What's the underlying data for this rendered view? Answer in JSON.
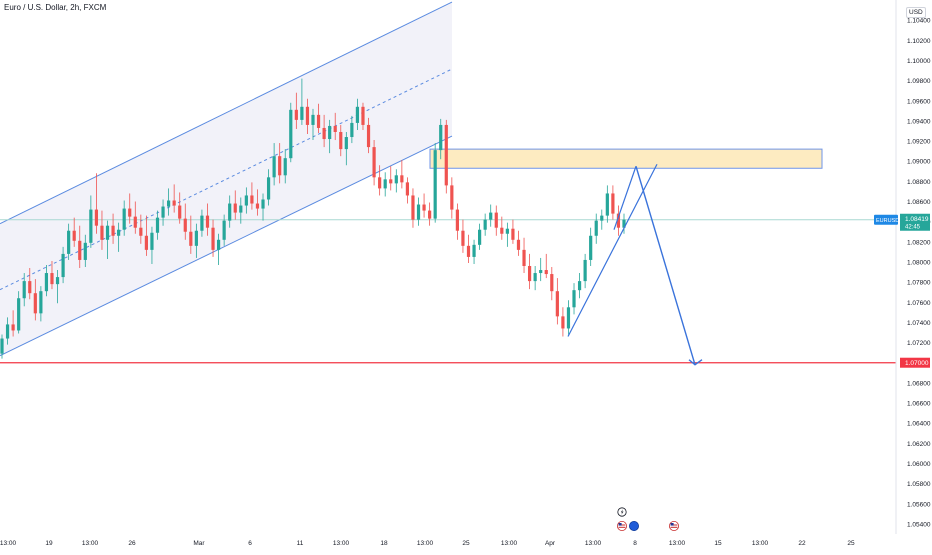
{
  "header": {
    "title": "Euro / U.S. Dollar, 2h, FXCM",
    "currency_label": "USD"
  },
  "colors": {
    "up_candle": "#26a69a",
    "down_candle": "#ef5350",
    "channel_line": "#5b8be0",
    "channel_fill": "#ececf6",
    "zone_fill": "#fde8b6",
    "zone_border": "#6f95e8",
    "support_line": "#f23645",
    "projection_line": "#3a73db",
    "current_price_line": "#a8d8d2",
    "axis_text": "#131722"
  },
  "chart_data": {
    "type": "candlestick",
    "symbol": "EURUSD",
    "timeframe": "2h",
    "ylim": [
      1.053,
      1.106
    ],
    "y_ticks": [
      "1.10400",
      "1.10200",
      "1.10000",
      "1.09800",
      "1.09600",
      "1.09400",
      "1.09200",
      "1.09000",
      "1.08800",
      "1.08600",
      "1.08400",
      "1.08200",
      "1.08000",
      "1.07800",
      "1.07600",
      "1.07400",
      "1.07200",
      "1.06800",
      "1.06600",
      "1.06400",
      "1.06200",
      "1.06000",
      "1.05800",
      "1.05600",
      "1.05400"
    ],
    "x_ticks": [
      "13:00",
      "19",
      "13:00",
      "26",
      "Mar",
      "6",
      "11",
      "13:00",
      "18",
      "13:00",
      "25",
      "13:00",
      "Apr",
      "13:00",
      "8",
      "13:00",
      "15",
      "13:00",
      "22",
      "25"
    ],
    "current_price": {
      "symbol": "EURUSD",
      "value": "1.08419",
      "countdown": "42:45"
    },
    "support_level": {
      "value": "1.07000"
    },
    "candles": [
      [
        1.0709,
        1.0728,
        1.0704,
        1.0724
      ],
      [
        1.0724,
        1.0745,
        1.0718,
        1.0738
      ],
      [
        1.0738,
        1.0752,
        1.0726,
        1.0732
      ],
      [
        1.0732,
        1.0771,
        1.0729,
        1.0764
      ],
      [
        1.0764,
        1.0789,
        1.0756,
        1.0781
      ],
      [
        1.0781,
        1.0794,
        1.0763,
        1.0769
      ],
      [
        1.0769,
        1.0783,
        1.0742,
        1.0749
      ],
      [
        1.0749,
        1.0776,
        1.0741,
        1.0771
      ],
      [
        1.0771,
        1.0797,
        1.0766,
        1.0789
      ],
      [
        1.0789,
        1.0801,
        1.0773,
        1.0778
      ],
      [
        1.0778,
        1.0792,
        1.0759,
        1.0785
      ],
      [
        1.0785,
        1.0815,
        1.0779,
        1.0808
      ],
      [
        1.0808,
        1.0838,
        1.0802,
        1.0831
      ],
      [
        1.0831,
        1.0844,
        1.0815,
        1.0821
      ],
      [
        1.0821,
        1.0836,
        1.0794,
        1.0802
      ],
      [
        1.0802,
        1.0827,
        1.0795,
        1.0819
      ],
      [
        1.0819,
        1.0866,
        1.0814,
        1.0852
      ],
      [
        1.0852,
        1.0888,
        1.0828,
        1.0836
      ],
      [
        1.0836,
        1.0851,
        1.0812,
        1.0822
      ],
      [
        1.0822,
        1.0841,
        1.0803,
        1.0836
      ],
      [
        1.0836,
        1.0848,
        1.0818,
        1.0826
      ],
      [
        1.0826,
        1.0839,
        1.081,
        1.0832
      ],
      [
        1.0832,
        1.0861,
        1.0826,
        1.0853
      ],
      [
        1.0853,
        1.0868,
        1.0838,
        1.0845
      ],
      [
        1.0845,
        1.086,
        1.0828,
        1.0834
      ],
      [
        1.0834,
        1.0847,
        1.0818,
        1.0826
      ],
      [
        1.0826,
        1.0846,
        1.0806,
        1.0812
      ],
      [
        1.0812,
        1.0835,
        1.0798,
        1.0829
      ],
      [
        1.0829,
        1.0851,
        1.0822,
        1.0844
      ],
      [
        1.0844,
        1.0862,
        1.0836,
        1.0855
      ],
      [
        1.0855,
        1.0873,
        1.0846,
        1.0861
      ],
      [
        1.0861,
        1.0877,
        1.0849,
        1.0856
      ],
      [
        1.0856,
        1.0869,
        1.0838,
        1.0843
      ],
      [
        1.0843,
        1.0858,
        1.0822,
        1.083
      ],
      [
        1.083,
        1.0846,
        1.0808,
        1.0816
      ],
      [
        1.0816,
        1.0838,
        1.0804,
        1.0831
      ],
      [
        1.0831,
        1.0852,
        1.0825,
        1.0846
      ],
      [
        1.0846,
        1.0858,
        1.0826,
        1.0834
      ],
      [
        1.0834,
        1.0842,
        1.0805,
        1.0812
      ],
      [
        1.0812,
        1.0828,
        1.0797,
        1.0822
      ],
      [
        1.0822,
        1.0847,
        1.0816,
        1.0841
      ],
      [
        1.0841,
        1.0866,
        1.0834,
        1.0858
      ],
      [
        1.0858,
        1.0871,
        1.0842,
        1.0849
      ],
      [
        1.0849,
        1.0864,
        1.0838,
        1.0856
      ],
      [
        1.0856,
        1.0874,
        1.0848,
        1.0866
      ],
      [
        1.0866,
        1.0879,
        1.0852,
        1.0858
      ],
      [
        1.0858,
        1.0872,
        1.0846,
        1.0853
      ],
      [
        1.0853,
        1.0868,
        1.0841,
        1.0862
      ],
      [
        1.0862,
        1.0892,
        1.0856,
        1.0884
      ],
      [
        1.0884,
        1.0918,
        1.0876,
        1.0905
      ],
      [
        1.0905,
        1.0918,
        1.0878,
        1.0886
      ],
      [
        1.0886,
        1.0912,
        1.0878,
        1.0903
      ],
      [
        1.0903,
        1.0958,
        1.0899,
        1.0951
      ],
      [
        1.0951,
        1.0968,
        1.0932,
        1.0941
      ],
      [
        1.0941,
        1.0982,
        1.0936,
        1.0954
      ],
      [
        1.0954,
        1.0962,
        1.0927,
        1.0936
      ],
      [
        1.0936,
        1.0952,
        1.0921,
        1.0946
      ],
      [
        1.0946,
        1.0957,
        1.0928,
        1.0933
      ],
      [
        1.0933,
        1.0946,
        1.0914,
        1.0922
      ],
      [
        1.0922,
        1.0941,
        1.0908,
        1.0935
      ],
      [
        1.0935,
        1.0948,
        1.0921,
        1.0929
      ],
      [
        1.0929,
        1.0936,
        1.0905,
        1.0912
      ],
      [
        1.0912,
        1.0929,
        1.0896,
        1.0924
      ],
      [
        1.0924,
        1.0945,
        1.0918,
        1.0938
      ],
      [
        1.0938,
        1.0962,
        1.0931,
        1.0954
      ],
      [
        1.0954,
        1.0958,
        1.0931,
        1.0936
      ],
      [
        1.0936,
        1.0943,
        1.0908,
        1.0914
      ],
      [
        1.0914,
        1.0921,
        1.0876,
        1.0884
      ],
      [
        1.0884,
        1.0896,
        1.0866,
        1.0873
      ],
      [
        1.0873,
        1.0889,
        1.0865,
        1.0882
      ],
      [
        1.0882,
        1.0895,
        1.0871,
        1.0878
      ],
      [
        1.0878,
        1.0892,
        1.0869,
        1.0886
      ],
      [
        1.0886,
        1.0901,
        1.0873,
        1.0879
      ],
      [
        1.0879,
        1.0884,
        1.0858,
        1.0866
      ],
      [
        1.0866,
        1.0873,
        1.0834,
        1.0842
      ],
      [
        1.0842,
        1.0864,
        1.0836,
        1.0857
      ],
      [
        1.0857,
        1.0868,
        1.0844,
        1.0851
      ],
      [
        1.0851,
        1.0859,
        1.0836,
        1.0843
      ],
      [
        1.0843,
        1.0918,
        1.0839,
        1.0911
      ],
      [
        1.0911,
        1.0942,
        1.0902,
        1.0936
      ],
      [
        1.0936,
        1.0941,
        1.0868,
        1.0876
      ],
      [
        1.0876,
        1.0884,
        1.0843,
        1.0852
      ],
      [
        1.0852,
        1.0858,
        1.0822,
        1.0831
      ],
      [
        1.0831,
        1.0842,
        1.0809,
        1.0816
      ],
      [
        1.0816,
        1.0827,
        1.0799,
        1.0805
      ],
      [
        1.0805,
        1.0822,
        1.0798,
        1.0817
      ],
      [
        1.0817,
        1.0838,
        1.0812,
        1.0832
      ],
      [
        1.0832,
        1.0848,
        1.0826,
        1.0842
      ],
      [
        1.0842,
        1.0857,
        1.0835,
        1.0849
      ],
      [
        1.0849,
        1.0856,
        1.0826,
        1.0834
      ],
      [
        1.0834,
        1.0845,
        1.0822,
        1.0828
      ],
      [
        1.0828,
        1.0839,
        1.0815,
        1.0833
      ],
      [
        1.0833,
        1.0842,
        1.0818,
        1.0822
      ],
      [
        1.0822,
        1.0831,
        1.0806,
        1.0812
      ],
      [
        1.0812,
        1.0824,
        1.0789,
        1.0796
      ],
      [
        1.0796,
        1.0808,
        1.0773,
        1.0781
      ],
      [
        1.0781,
        1.0796,
        1.0772,
        1.0789
      ],
      [
        1.0789,
        1.0804,
        1.0781,
        1.0792
      ],
      [
        1.0792,
        1.0808,
        1.0784,
        1.0788
      ],
      [
        1.0788,
        1.0795,
        1.0762,
        1.0771
      ],
      [
        1.0771,
        1.0784,
        1.0738,
        1.0746
      ],
      [
        1.0746,
        1.0755,
        1.0726,
        1.0734
      ],
      [
        1.0734,
        1.0762,
        1.0728,
        1.0755
      ],
      [
        1.0755,
        1.0779,
        1.0748,
        1.0772
      ],
      [
        1.0772,
        1.0789,
        1.0764,
        1.0781
      ],
      [
        1.0781,
        1.0808,
        1.0774,
        1.0802
      ],
      [
        1.0802,
        1.0834,
        1.0796,
        1.0826
      ],
      [
        1.0826,
        1.0848,
        1.0818,
        1.0841
      ],
      [
        1.0841,
        1.0852,
        1.0832,
        1.0846
      ],
      [
        1.0846,
        1.0876,
        1.0839,
        1.0868
      ],
      [
        1.0868,
        1.0876,
        1.0842,
        1.0848
      ],
      [
        1.0848,
        1.0856,
        1.0826,
        1.0834
      ],
      [
        1.0834,
        1.0848,
        1.0828,
        1.0842
      ]
    ],
    "drawings": {
      "ascending_channel": {
        "start_price_lower": 1.0707,
        "start_price_upper": 1.0838,
        "end_price_lower": 1.0925,
        "end_price_upper": 1.1058,
        "midline": "dashed"
      },
      "resistance_zone": {
        "top": 1.0912,
        "bottom": 1.0893
      },
      "projection_path": [
        1.0726,
        1.0895,
        1.0698
      ]
    }
  }
}
